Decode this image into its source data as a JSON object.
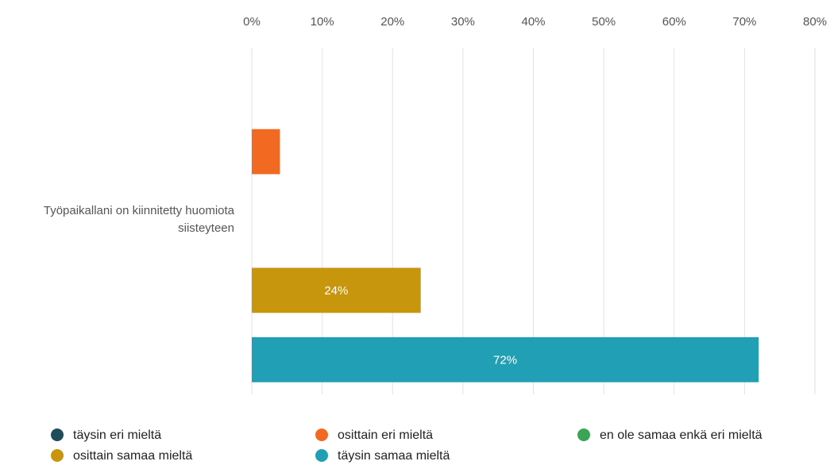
{
  "chart_data": {
    "type": "bar",
    "orientation": "horizontal",
    "categories": [
      "Työpaikallani on kiinnitetty huomiota siisteyteen"
    ],
    "series": [
      {
        "name": "täysin eri mieltä",
        "color": "#1f4e5a",
        "values": [
          0
        ]
      },
      {
        "name": "osittain eri mieltä",
        "color": "#f26a21",
        "values": [
          4
        ]
      },
      {
        "name": "en ole samaa enkä eri mieltä",
        "color": "#3aa655",
        "values": [
          0
        ]
      },
      {
        "name": "osittain samaa mieltä",
        "color": "#c8960c",
        "values": [
          24
        ],
        "value_labels": [
          "24%"
        ]
      },
      {
        "name": "täysin samaa mieltä",
        "color": "#21a0b5",
        "values": [
          72
        ],
        "value_labels": [
          "72%"
        ]
      }
    ],
    "xlim": [
      0,
      80
    ],
    "xticks": [
      {
        "value": 0,
        "label": "0%"
      },
      {
        "value": 10,
        "label": "10%"
      },
      {
        "value": 20,
        "label": "20%"
      },
      {
        "value": 30,
        "label": "30%"
      },
      {
        "value": 40,
        "label": "40%"
      },
      {
        "value": 50,
        "label": "50%"
      },
      {
        "value": 60,
        "label": "60%"
      },
      {
        "value": 70,
        "label": "70%"
      },
      {
        "value": 80,
        "label": "80%"
      }
    ],
    "grid": true,
    "legend": "bottom"
  }
}
